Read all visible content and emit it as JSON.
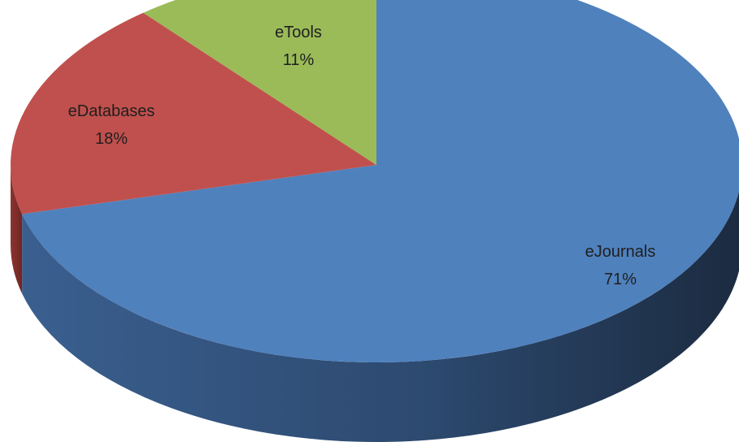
{
  "chart_data": {
    "type": "pie",
    "title": "",
    "slices": [
      {
        "label": "eJournals",
        "value": 71,
        "value_label": "71%",
        "color": "#4f81bd"
      },
      {
        "label": "eDatabases",
        "value": 18,
        "value_label": "18%",
        "color": "#c0504d"
      },
      {
        "label": "eTools",
        "value": 11,
        "value_label": "11%",
        "color": "#9bbb59"
      }
    ],
    "start_angle_deg": 90,
    "direction": "clockwise",
    "style": "3d",
    "legend": "none"
  }
}
